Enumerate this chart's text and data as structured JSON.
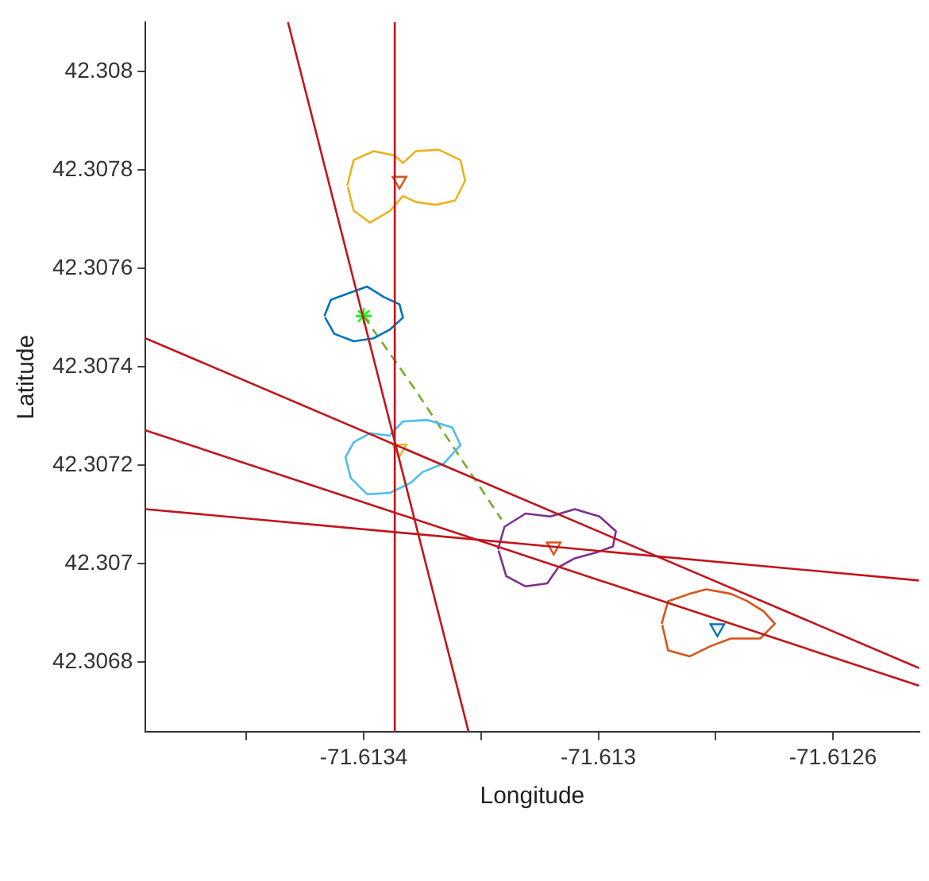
{
  "chart_data": {
    "type": "line",
    "xlabel": "Longitude",
    "ylabel": "Latitude",
    "grid": false,
    "legend": false,
    "xlim": [
      -71.613772,
      -71.612453
    ],
    "ylim": [
      42.306658,
      42.3081
    ],
    "xticks": [
      {
        "value": -71.6136,
        "label": null
      },
      -71.6134,
      {
        "value": -71.6132,
        "label": null
      },
      -71.613,
      {
        "value": -71.6128,
        "label": null
      },
      -71.6126
    ],
    "yticks": [
      42.3068,
      42.307,
      42.3072,
      42.3074,
      42.3076,
      42.3078,
      42.308
    ],
    "series": [
      {
        "color": "#c0161c",
        "marker": "none",
        "x": [
          -71.613347,
          -71.613347
        ],
        "values": [
          42.306658,
          42.3081
        ]
      },
      {
        "color": "#c0161c",
        "marker": "none",
        "x": [
          -71.613529,
          -71.613221
        ],
        "values": [
          42.3081,
          42.306658
        ]
      },
      {
        "color": "#c0161c",
        "marker": "none",
        "x": [
          -71.613772,
          -71.612453
        ],
        "values": [
          42.307458,
          42.306788
        ]
      },
      {
        "color": "#c0161c",
        "marker": "none",
        "x": [
          -71.613772,
          -71.612453
        ],
        "values": [
          42.307271,
          42.306752
        ]
      },
      {
        "color": "#c0161c",
        "marker": "none",
        "x": [
          -71.613772,
          -71.612453
        ],
        "values": [
          42.307111,
          42.306966
        ]
      },
      {
        "color": "#edb120",
        "marker": "none",
        "x": [
          -71.613428,
          -71.613417,
          -71.613383,
          -71.613347,
          -71.613333,
          -71.613311,
          -71.613272,
          -71.613235,
          -71.613227,
          -71.613244,
          -71.613277,
          -71.613311,
          -71.613333,
          -71.613355,
          -71.613389,
          -71.613417,
          -71.613427
        ],
        "values": [
          42.307768,
          42.30782,
          42.307838,
          42.307829,
          42.307814,
          42.307838,
          42.307841,
          42.30782,
          42.307778,
          42.307738,
          42.307729,
          42.307735,
          42.307747,
          42.307717,
          42.307693,
          42.307717,
          42.307766
        ]
      },
      {
        "color": "#0072bd",
        "marker": "none",
        "x": [
          -71.613467,
          -71.613456,
          -71.613422,
          -71.613394,
          -71.613366,
          -71.613339,
          -71.613333,
          -71.613355,
          -71.613383,
          -71.613417,
          -71.61345,
          -71.613466
        ],
        "values": [
          42.307503,
          42.307536,
          42.307551,
          42.307563,
          42.307542,
          42.307527,
          42.3075,
          42.307476,
          42.307458,
          42.307452,
          42.307467,
          42.307501
        ]
      },
      {
        "color": "#4dbeee",
        "marker": "none",
        "x": [
          -71.613355,
          -71.613333,
          -71.613291,
          -71.613249,
          -71.613235,
          -71.613263,
          -71.6133,
          -71.613319,
          -71.613355,
          -71.613394,
          -71.613422,
          -71.613431,
          -71.613417,
          -71.613389,
          -71.613354
        ],
        "values": [
          42.307262,
          42.307289,
          42.307292,
          42.307277,
          42.307241,
          42.307204,
          42.307186,
          42.307165,
          42.307144,
          42.307141,
          42.307174,
          42.307216,
          42.307247,
          42.307265,
          42.30726
        ]
      },
      {
        "color": "#7e2f8e",
        "marker": "none",
        "x": [
          -71.613171,
          -71.61316,
          -71.613124,
          -71.613082,
          -71.61304,
          -71.612998,
          -71.61297,
          -71.612975,
          -71.613003,
          -71.61304,
          -71.613068,
          -71.613087,
          -71.613124,
          -71.613157,
          -71.61317
        ],
        "values": [
          42.307029,
          42.307075,
          42.307102,
          42.307096,
          42.307111,
          42.307096,
          42.307066,
          42.307035,
          42.307023,
          42.307011,
          42.306993,
          42.30696,
          42.306954,
          42.306975,
          42.307027
        ]
      },
      {
        "color": "#d95319",
        "marker": "none",
        "x": [
          -71.612892,
          -71.612881,
          -71.612844,
          -71.612816,
          -71.612774,
          -71.612746,
          -71.612718,
          -71.612699,
          -71.612724,
          -71.612774,
          -71.612808,
          -71.612844,
          -71.612881,
          -71.612891
        ],
        "values": [
          42.306878,
          42.306924,
          42.306939,
          42.306948,
          42.306939,
          42.306924,
          42.306903,
          42.306878,
          42.306848,
          42.306848,
          42.306833,
          42.306812,
          42.306824,
          42.306876
        ]
      },
      {
        "color": "#77ac30",
        "marker": "none",
        "line_style": "dashed",
        "x": [
          -71.6134,
          -71.613313,
          -71.613165
        ],
        "values": [
          42.307503,
          42.307355,
          42.30709
        ]
      },
      {
        "type": "scatter",
        "marker": "triangle",
        "colors": [
          "#d95319",
          "#edb120",
          "#d95319",
          "#0072bd"
        ],
        "x": [
          -71.613339,
          -71.613339,
          -71.613076,
          -71.612797
        ],
        "values": [
          42.307778,
          42.307234,
          42.307035,
          42.306869
        ]
      },
      {
        "type": "scatter",
        "marker": "cross",
        "color": "#00ff00",
        "x": [
          -71.6134
        ],
        "values": [
          42.307503
        ]
      }
    ]
  }
}
